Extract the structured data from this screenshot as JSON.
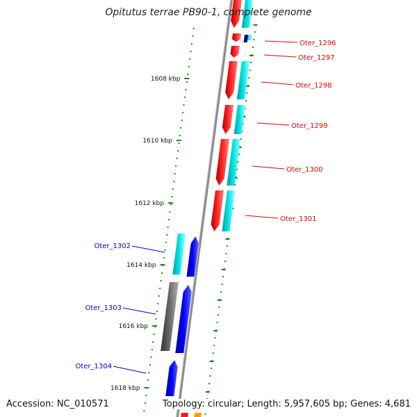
{
  "title": "Opitutus terrae PB90-1, complete genome",
  "accession": "Accession: NC_010571",
  "summary": "Topology: circular; Length: 5,957,605 bp; Genes: 4,681",
  "colors": {
    "forward_red": "#ff0000",
    "forward_cyan": "#00e0e0",
    "reverse_blue": "#0000ee",
    "reverse_gray": "#666666",
    "label_red": "#dd0000",
    "label_blue": "#0000cc",
    "tick_green": "#1a8a1a",
    "backbone": "#8c8c8c"
  },
  "ruler": [
    {
      "label": "1608 kbp"
    },
    {
      "label": "1610 kbp"
    },
    {
      "label": "1612 kbp"
    },
    {
      "label": "1614 kbp"
    },
    {
      "label": "1616 kbp"
    },
    {
      "label": "1618 kbp"
    }
  ],
  "forward_genes": [
    {
      "label": "Oter_1296"
    },
    {
      "label": "Oter_1297"
    },
    {
      "label": "Oter_1298"
    },
    {
      "label": "Oter_1299"
    },
    {
      "label": "Oter_1300"
    },
    {
      "label": "Oter_1301"
    }
  ],
  "reverse_genes": [
    {
      "label": "Oter_1302"
    },
    {
      "label": "Oter_1303"
    },
    {
      "label": "Oter_1304"
    }
  ]
}
